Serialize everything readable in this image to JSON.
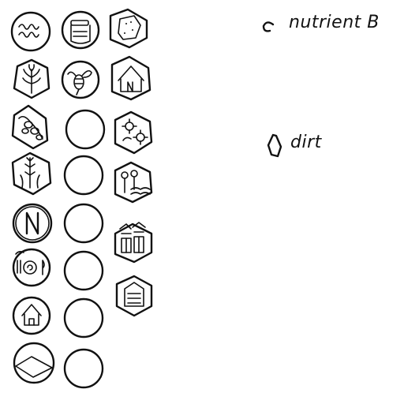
{
  "legend": {
    "nutrient_label": "nutrient B",
    "dirt_label": "dirt",
    "nutrient_icon": "circle-outline-icon",
    "dirt_icon": "hexagon-outline-icon"
  },
  "tiles": {
    "column_1": [
      "water-circle-icon",
      "plant-hexagon-icon",
      "seeds-hexagon-icon",
      "grass-hexagon-icon",
      "n-letter-circle-icon",
      "food-circle-icon",
      "house-circle-icon",
      "field-circle-icon"
    ],
    "column_2": [
      "jar-circle-icon",
      "bee-circle-icon",
      "empty-circle",
      "empty-circle",
      "empty-circle",
      "empty-circle",
      "empty-circle",
      "empty-circle"
    ],
    "column_3": [
      "rock-hexagon-icon",
      "n-house-hexagon-icon",
      "flowers-hexagon-icon",
      "sprouts-hexagon-icon",
      "crates-hexagon-icon",
      "hive-hexagon-icon"
    ]
  }
}
